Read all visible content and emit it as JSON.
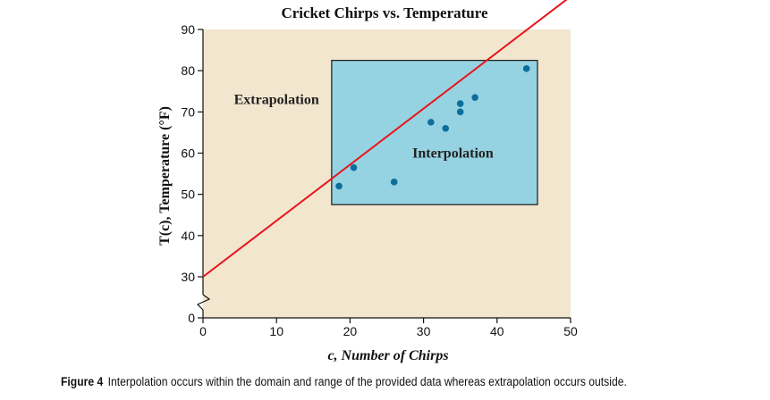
{
  "chart_data": {
    "type": "scatter",
    "title": "Cricket Chirps vs. Temperature",
    "xlabel": "c, Number of Chirps",
    "ylabel": "T(c), Temperature (°F)",
    "xlim": [
      0,
      50
    ],
    "ylim": [
      0,
      90
    ],
    "y_axis_break": true,
    "x_ticks": [
      0,
      10,
      20,
      30,
      40,
      50
    ],
    "y_ticks": [
      0,
      30,
      40,
      50,
      60,
      70,
      80,
      90
    ],
    "grid": false,
    "points": [
      {
        "x": 18.5,
        "y": 52
      },
      {
        "x": 20.5,
        "y": 56.5
      },
      {
        "x": 26,
        "y": 53
      },
      {
        "x": 31,
        "y": 67.5
      },
      {
        "x": 33,
        "y": 66
      },
      {
        "x": 35,
        "y": 70
      },
      {
        "x": 35,
        "y": 72
      },
      {
        "x": 37,
        "y": 73.5
      },
      {
        "x": 44,
        "y": 80.5
      }
    ],
    "regression_line": {
      "x": [
        0,
        50
      ],
      "y": [
        30,
        98
      ]
    },
    "interpolation_region": {
      "x": [
        17.5,
        45.5
      ],
      "y": [
        47.5,
        82.5
      ]
    },
    "annotations": [
      {
        "text": "Extrapolation",
        "x": 10,
        "y": 73
      },
      {
        "text": "Interpolation",
        "x": 34,
        "y": 60
      }
    ],
    "colors": {
      "background": "#f2e6cf",
      "region": "#96d3e2",
      "point": "#0d6e9c",
      "line": "#e8141b"
    }
  },
  "caption": {
    "label": "Figure 4",
    "text": "Interpolation occurs within the domain and range of the provided data whereas extrapolation occurs outside."
  }
}
